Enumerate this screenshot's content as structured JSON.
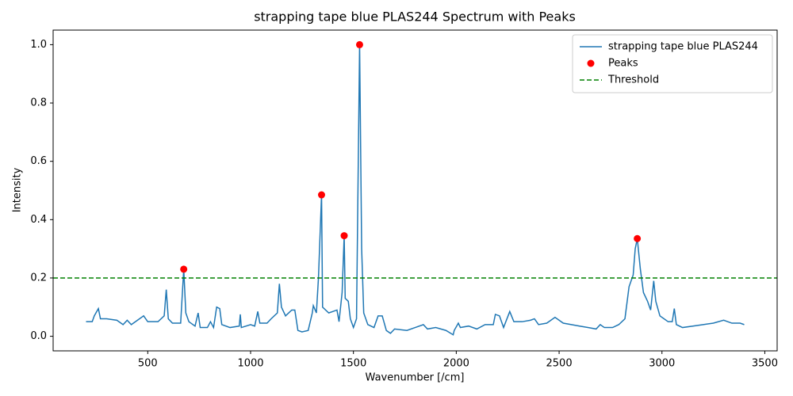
{
  "chart_data": {
    "type": "line",
    "title": "strapping tape blue PLAS244 Spectrum with Peaks",
    "xlabel": "Wavenumber [/cm]",
    "ylabel": "Intensity",
    "xlim": [
      40,
      3560
    ],
    "ylim": [
      -0.05,
      1.05
    ],
    "xticks": [
      500,
      1000,
      1500,
      2000,
      2500,
      3000,
      3500
    ],
    "yticks": [
      {
        "value": 0,
        "label": "0.0"
      },
      0.2,
      0.4,
      0.6,
      0.8,
      {
        "value": 1,
        "label": "1.0"
      }
    ],
    "legend": "upper right",
    "series": [
      {
        "name": "strapping tape blue PLAS244",
        "color": "#1f77b4",
        "type": "line",
        "x": [
          200,
          230,
          240,
          260,
          270,
          300,
          350,
          380,
          400,
          420,
          460,
          480,
          500,
          550,
          580,
          590,
          600,
          620,
          660,
          675,
          685,
          700,
          730,
          745,
          755,
          790,
          805,
          820,
          835,
          850,
          860,
          900,
          945,
          950,
          955,
          1000,
          1020,
          1035,
          1045,
          1080,
          1100,
          1130,
          1140,
          1150,
          1170,
          1200,
          1215,
          1230,
          1250,
          1280,
          1300,
          1305,
          1320,
          1330,
          1345,
          1350,
          1380,
          1420,
          1430,
          1445,
          1455,
          1460,
          1475,
          1485,
          1500,
          1515,
          1530,
          1540,
          1550,
          1570,
          1600,
          1620,
          1640,
          1660,
          1680,
          1700,
          1760,
          1800,
          1840,
          1860,
          1900,
          1950,
          1985,
          1990,
          2010,
          2020,
          2060,
          2100,
          2140,
          2180,
          2190,
          2210,
          2230,
          2260,
          2280,
          2320,
          2360,
          2380,
          2400,
          2440,
          2480,
          2520,
          2560,
          2600,
          2640,
          2680,
          2700,
          2720,
          2760,
          2790,
          2820,
          2840,
          2860,
          2870,
          2880,
          2895,
          2910,
          2930,
          2945,
          2960,
          2970,
          2990,
          3010,
          3030,
          3050,
          3060,
          3070,
          3100,
          3150,
          3200,
          3250,
          3300,
          3340,
          3380,
          3400
        ],
        "values": [
          0.05,
          0.05,
          0.07,
          0.095,
          0.06,
          0.06,
          0.055,
          0.04,
          0.055,
          0.04,
          0.06,
          0.07,
          0.05,
          0.05,
          0.07,
          0.16,
          0.06,
          0.045,
          0.045,
          0.23,
          0.08,
          0.05,
          0.035,
          0.08,
          0.03,
          0.03,
          0.05,
          0.03,
          0.1,
          0.095,
          0.04,
          0.03,
          0.035,
          0.075,
          0.03,
          0.04,
          0.035,
          0.085,
          0.045,
          0.045,
          0.06,
          0.08,
          0.18,
          0.1,
          0.07,
          0.09,
          0.09,
          0.02,
          0.015,
          0.02,
          0.08,
          0.105,
          0.08,
          0.2,
          0.485,
          0.1,
          0.08,
          0.09,
          0.05,
          0.15,
          0.345,
          0.13,
          0.12,
          0.06,
          0.03,
          0.06,
          1.0,
          0.3,
          0.08,
          0.04,
          0.03,
          0.07,
          0.07,
          0.02,
          0.01,
          0.025,
          0.02,
          0.03,
          0.04,
          0.025,
          0.03,
          0.02,
          0.005,
          0.02,
          0.045,
          0.03,
          0.035,
          0.025,
          0.04,
          0.04,
          0.075,
          0.07,
          0.03,
          0.085,
          0.05,
          0.05,
          0.055,
          0.06,
          0.04,
          0.045,
          0.065,
          0.045,
          0.04,
          0.035,
          0.03,
          0.025,
          0.04,
          0.03,
          0.03,
          0.04,
          0.06,
          0.17,
          0.21,
          0.3,
          0.335,
          0.23,
          0.15,
          0.12,
          0.09,
          0.19,
          0.12,
          0.07,
          0.06,
          0.05,
          0.05,
          0.095,
          0.04,
          0.03,
          0.035,
          0.04,
          0.045,
          0.055,
          0.045,
          0.045,
          0.04
        ]
      },
      {
        "name": "Peaks",
        "color": "red",
        "type": "scatter",
        "x": [
          675,
          1345,
          1455,
          1530,
          2880
        ],
        "values": [
          0.23,
          0.485,
          0.345,
          1.0,
          0.335
        ]
      },
      {
        "name": "Threshold",
        "color": "green",
        "type": "hline",
        "linestyle": "dashed",
        "values": [
          0.2
        ]
      }
    ]
  }
}
